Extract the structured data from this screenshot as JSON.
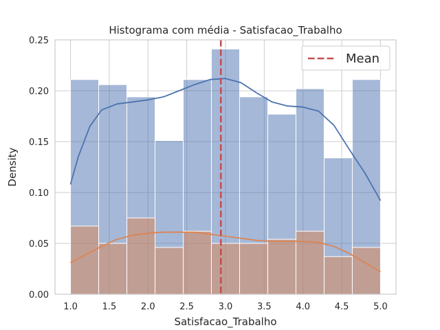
{
  "chart_data": {
    "type": "bar",
    "title": "Histograma com média - Satisfacao_Trabalho",
    "xlabel": "Satisfacao_Trabalho",
    "ylabel": "Density",
    "xlim": [
      0.8,
      5.2
    ],
    "ylim": [
      0,
      0.25
    ],
    "x_ticks": [
      1.0,
      1.5,
      2.0,
      2.5,
      3.0,
      3.5,
      4.0,
      4.5,
      5.0
    ],
    "x_tick_labels": [
      "1.0",
      "1.5",
      "2.0",
      "2.5",
      "3.0",
      "3.5",
      "4.0",
      "4.5",
      "5.0"
    ],
    "y_ticks": [
      0,
      0.05,
      0.1,
      0.15,
      0.2,
      0.25
    ],
    "y_tick_labels": [
      "0.00",
      "0.05",
      "0.10",
      "0.15",
      "0.20",
      "0.25"
    ],
    "grid": true,
    "legend_position": "top-right",
    "bin_edges": [
      1.0,
      1.3636,
      1.7273,
      2.0909,
      2.4545,
      2.8182,
      3.1818,
      3.5455,
      3.9091,
      4.2727,
      4.6364,
      5.0
    ],
    "series": [
      {
        "values": [
          0.211,
          0.206,
          0.194,
          0.151,
          0.211,
          0.241,
          0.194,
          0.177,
          0.202,
          0.134,
          0.211
        ],
        "color": "#4c72b0",
        "kde": {
          "x": [
            1.0,
            1.1,
            1.25,
            1.4,
            1.6,
            1.8,
            2.0,
            2.2,
            2.4,
            2.6,
            2.8,
            3.0,
            3.2,
            3.4,
            3.6,
            3.8,
            4.0,
            4.2,
            4.4,
            4.6,
            4.8,
            5.0
          ],
          "y": [
            0.108,
            0.135,
            0.165,
            0.181,
            0.187,
            0.189,
            0.191,
            0.194,
            0.2,
            0.206,
            0.211,
            0.212,
            0.208,
            0.198,
            0.189,
            0.185,
            0.184,
            0.18,
            0.166,
            0.142,
            0.119,
            0.092
          ]
        }
      },
      {
        "values": [
          0.067,
          0.05,
          0.075,
          0.046,
          0.062,
          0.05,
          0.05,
          0.054,
          0.062,
          0.037,
          0.046
        ],
        "color": "#dd8452",
        "kde": {
          "x": [
            1.0,
            1.2,
            1.4,
            1.6,
            1.8,
            2.0,
            2.2,
            2.4,
            2.6,
            2.8,
            3.0,
            3.2,
            3.4,
            3.6,
            3.8,
            4.0,
            4.2,
            4.4,
            4.6,
            4.8,
            5.0
          ],
          "y": [
            0.031,
            0.039,
            0.047,
            0.054,
            0.058,
            0.06,
            0.061,
            0.061,
            0.061,
            0.059,
            0.057,
            0.055,
            0.053,
            0.052,
            0.052,
            0.052,
            0.051,
            0.047,
            0.04,
            0.031,
            0.022
          ]
        }
      }
    ],
    "mean_line": {
      "x": 2.94,
      "label": "Mean",
      "color": "#c44e52"
    }
  }
}
